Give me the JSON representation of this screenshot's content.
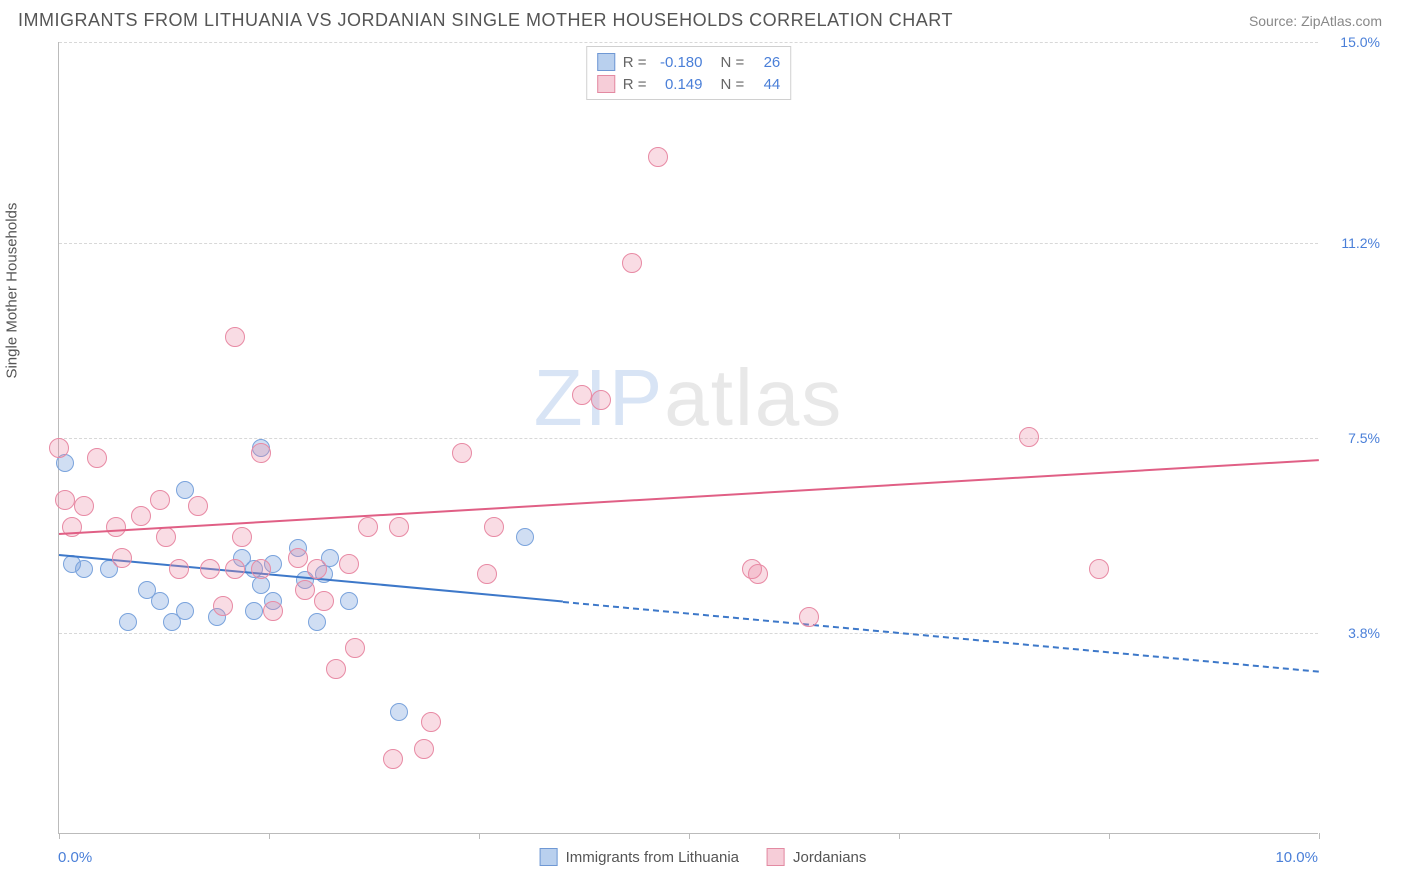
{
  "title": "IMMIGRANTS FROM LITHUANIA VS JORDANIAN SINGLE MOTHER HOUSEHOLDS CORRELATION CHART",
  "source_label": "Source: ZipAtlas.com",
  "y_axis_label": "Single Mother Households",
  "watermark_a": "ZIP",
  "watermark_b": "atlas",
  "chart": {
    "type": "scatter",
    "xlim": [
      0,
      10
    ],
    "ylim": [
      0,
      15
    ],
    "x_tick_positions": [
      0,
      1.67,
      3.33,
      5.0,
      6.67,
      8.33,
      10.0
    ],
    "x_min_label": "0.0%",
    "x_max_label": "10.0%",
    "y_gridlines": [
      {
        "value": 3.8,
        "label": "3.8%"
      },
      {
        "value": 7.5,
        "label": "7.5%"
      },
      {
        "value": 11.2,
        "label": "11.2%"
      },
      {
        "value": 15.0,
        "label": "15.0%"
      }
    ],
    "background_color": "#ffffff",
    "grid_color": "#d8d8d8",
    "axis_color": "#bbbbbb",
    "tick_label_color": "#4a7fd8",
    "series": [
      {
        "name": "Immigrants from Lithuania",
        "fill": "rgba(120,160,220,0.35)",
        "stroke": "#7aa3dc",
        "swatch_fill": "#b9d0ee",
        "swatch_stroke": "#6f98d4",
        "R": "-0.180",
        "N": "26",
        "trend": {
          "x0": 0,
          "y0": 5.3,
          "x1": 10,
          "y1": 3.1,
          "solid_until_x": 4.0,
          "color": "#3d78c9"
        },
        "marker_radius": 9,
        "points": [
          [
            0.05,
            7.0
          ],
          [
            0.1,
            5.1
          ],
          [
            0.2,
            5.0
          ],
          [
            0.4,
            5.0
          ],
          [
            0.55,
            4.0
          ],
          [
            0.7,
            4.6
          ],
          [
            0.8,
            4.4
          ],
          [
            0.9,
            4.0
          ],
          [
            1.0,
            6.5
          ],
          [
            1.0,
            4.2
          ],
          [
            1.25,
            4.1
          ],
          [
            1.45,
            5.2
          ],
          [
            1.55,
            5.0
          ],
          [
            1.6,
            4.7
          ],
          [
            1.55,
            4.2
          ],
          [
            1.6,
            7.3
          ],
          [
            1.7,
            4.4
          ],
          [
            1.7,
            5.1
          ],
          [
            1.9,
            5.4
          ],
          [
            1.95,
            4.8
          ],
          [
            2.1,
            4.9
          ],
          [
            2.15,
            5.2
          ],
          [
            2.3,
            4.4
          ],
          [
            2.7,
            2.3
          ],
          [
            3.7,
            5.6
          ],
          [
            2.05,
            4.0
          ]
        ]
      },
      {
        "name": "Jordanians",
        "fill": "rgba(235,140,165,0.30)",
        "stroke": "#e88aa4",
        "swatch_fill": "#f6cdd8",
        "swatch_stroke": "#e38aa2",
        "R": "0.149",
        "N": "44",
        "trend": {
          "x0": 0,
          "y0": 5.7,
          "x1": 10,
          "y1": 7.1,
          "solid_until_x": 10,
          "color": "#e05f85"
        },
        "marker_radius": 10,
        "points": [
          [
            0.0,
            7.3
          ],
          [
            0.05,
            6.3
          ],
          [
            0.1,
            5.8
          ],
          [
            0.2,
            6.2
          ],
          [
            0.3,
            7.1
          ],
          [
            0.45,
            5.8
          ],
          [
            0.5,
            5.2
          ],
          [
            0.65,
            6.0
          ],
          [
            0.8,
            6.3
          ],
          [
            0.85,
            5.6
          ],
          [
            0.95,
            5.0
          ],
          [
            1.1,
            6.2
          ],
          [
            1.2,
            5.0
          ],
          [
            1.3,
            4.3
          ],
          [
            1.4,
            5.0
          ],
          [
            1.4,
            9.4
          ],
          [
            1.45,
            5.6
          ],
          [
            1.6,
            5.0
          ],
          [
            1.6,
            7.2
          ],
          [
            1.7,
            4.2
          ],
          [
            1.9,
            5.2
          ],
          [
            1.95,
            4.6
          ],
          [
            2.05,
            5.0
          ],
          [
            2.1,
            4.4
          ],
          [
            2.2,
            3.1
          ],
          [
            2.3,
            5.1
          ],
          [
            2.35,
            3.5
          ],
          [
            2.45,
            5.8
          ],
          [
            2.7,
            5.8
          ],
          [
            2.65,
            1.4
          ],
          [
            2.95,
            2.1
          ],
          [
            2.9,
            1.6
          ],
          [
            3.2,
            7.2
          ],
          [
            3.4,
            4.9
          ],
          [
            3.45,
            5.8
          ],
          [
            4.15,
            8.3
          ],
          [
            4.3,
            8.2
          ],
          [
            4.55,
            10.8
          ],
          [
            4.75,
            12.8
          ],
          [
            5.5,
            5.0
          ],
          [
            5.55,
            4.9
          ],
          [
            5.95,
            4.1
          ],
          [
            7.7,
            7.5
          ],
          [
            8.25,
            5.0
          ]
        ]
      }
    ],
    "legend_bottom": [
      {
        "label": "Immigrants from Lithuania",
        "series": 0
      },
      {
        "label": "Jordanians",
        "series": 1
      }
    ]
  }
}
